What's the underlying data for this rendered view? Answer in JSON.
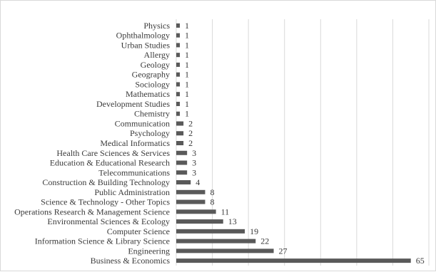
{
  "chart_data": {
    "type": "bar",
    "orientation": "horizontal",
    "categories": [
      "Physics",
      "Ophthalmology",
      "Urban Studies",
      "Allergy",
      "Geology",
      "Geography",
      "Sociology",
      "Mathematics",
      "Development Studies",
      "Chemistry",
      "Communication",
      "Psychology",
      "Medical Informatics",
      "Health Care Sciences & Services",
      "Education & Educational Research",
      "Telecommunications",
      "Construction & Building Technology",
      "Public Administration",
      "Science & Technology - Other Topics",
      "Operations Research & Management Science",
      "Environmental Sciences & Ecology",
      "Computer Science",
      "Information Science & Library Science",
      "Engineering",
      "Business & Economics"
    ],
    "values": [
      1,
      1,
      1,
      1,
      1,
      1,
      1,
      1,
      1,
      1,
      2,
      2,
      2,
      3,
      3,
      3,
      4,
      8,
      8,
      11,
      13,
      19,
      22,
      27,
      65
    ],
    "value_labels": [
      "1",
      "1",
      "1",
      "1",
      "1",
      "1",
      "1",
      "1",
      "1",
      "1",
      "2",
      "2",
      "2",
      "3",
      "3",
      "3",
      "4",
      "8",
      "8",
      "11",
      "13",
      "19",
      "22",
      "27",
      "65"
    ],
    "title": "",
    "xlabel": "",
    "ylabel": "",
    "xlim": [
      0,
      70
    ],
    "grid": "vertical",
    "legend": "none",
    "bar_color": "#595959",
    "grid_color": "#d9d9d9"
  }
}
